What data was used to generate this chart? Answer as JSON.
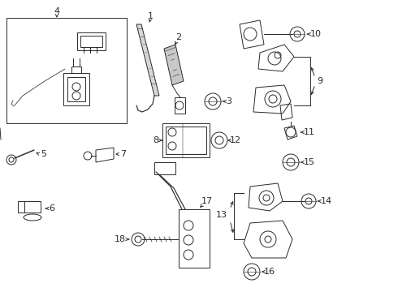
{
  "bg_color": "#ffffff",
  "line_color": "#2a2a2a",
  "fig_width": 4.9,
  "fig_height": 3.6,
  "dpi": 100,
  "label_fs": 8.0,
  "lw": 0.7
}
